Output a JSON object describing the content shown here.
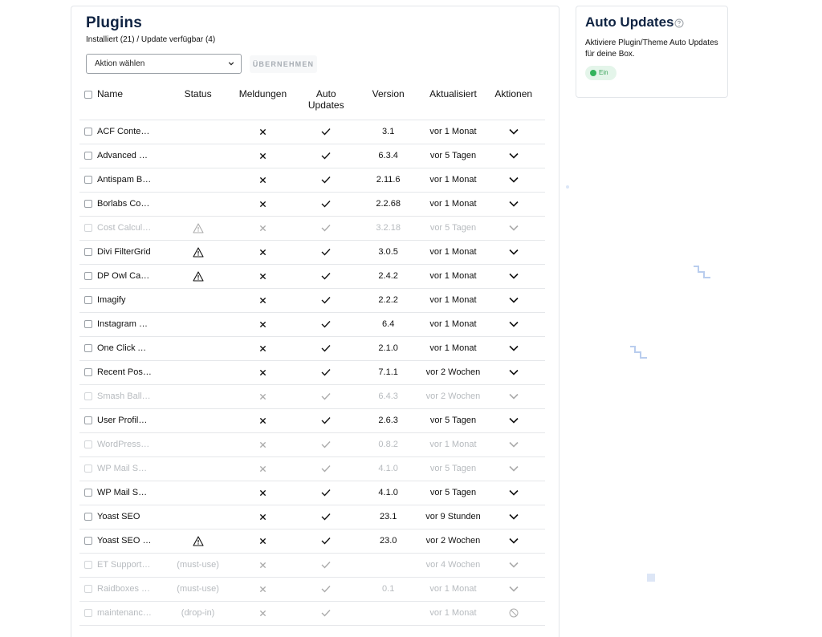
{
  "plugins_card": {
    "title": "Plugins",
    "subtitle": "Installiert (21) / Update verfügbar (4)",
    "bulk_action": {
      "value": "Aktion wählen"
    },
    "apply_label": "ÜBERNEHMEN",
    "columns": {
      "name": "Name",
      "status": "Status",
      "notifications": "Meldungen",
      "auto_updates_line1": "Auto",
      "auto_updates_line2": "Updates",
      "version": "Version",
      "updated": "Aktualisiert",
      "actions": "Aktionen"
    },
    "rows": [
      {
        "name": "ACF Content…",
        "status": "",
        "version": "3.1",
        "updated": "vor 1 Monat",
        "active": true,
        "warning": false,
        "action": "chevron"
      },
      {
        "name": "Advanced C…",
        "status": "",
        "version": "6.3.4",
        "updated": "vor 5 Tagen",
        "active": true,
        "warning": false,
        "action": "chevron"
      },
      {
        "name": "Antispam Bee",
        "status": "",
        "version": "2.11.6",
        "updated": "vor 1 Monat",
        "active": true,
        "warning": false,
        "action": "chevron"
      },
      {
        "name": "Borlabs Coo…",
        "status": "",
        "version": "2.2.68",
        "updated": "vor 1 Monat",
        "active": true,
        "warning": false,
        "action": "chevron"
      },
      {
        "name": "Cost Calcula…",
        "status": "",
        "version": "3.2.18",
        "updated": "vor 5 Tagen",
        "active": false,
        "warning": true,
        "action": "chevron"
      },
      {
        "name": "Divi FilterGrid",
        "status": "",
        "version": "3.0.5",
        "updated": "vor 1 Monat",
        "active": true,
        "warning": true,
        "action": "chevron"
      },
      {
        "name": "DP Owl Caro…",
        "status": "",
        "version": "2.4.2",
        "updated": "vor 1 Monat",
        "active": true,
        "warning": true,
        "action": "chevron"
      },
      {
        "name": "Imagify",
        "status": "",
        "version": "2.2.2",
        "updated": "vor 1 Monat",
        "active": true,
        "warning": false,
        "action": "chevron"
      },
      {
        "name": "Instagram F…",
        "status": "",
        "version": "6.4",
        "updated": "vor 1 Monat",
        "active": true,
        "warning": false,
        "action": "chevron"
      },
      {
        "name": "One Click Ac…",
        "status": "",
        "version": "2.1.0",
        "updated": "vor 1 Monat",
        "active": true,
        "warning": false,
        "action": "chevron"
      },
      {
        "name": "Recent Post…",
        "status": "",
        "version": "7.1.1",
        "updated": "vor 2 Wochen",
        "active": true,
        "warning": false,
        "action": "chevron"
      },
      {
        "name": "Smash Ballo…",
        "status": "",
        "version": "6.4.3",
        "updated": "vor 2 Wochen",
        "active": false,
        "warning": false,
        "action": "chevron"
      },
      {
        "name": "User Profile …",
        "status": "",
        "version": "2.6.3",
        "updated": "vor 5 Tagen",
        "active": true,
        "warning": false,
        "action": "chevron"
      },
      {
        "name": "WordPress I…",
        "status": "",
        "version": "0.8.2",
        "updated": "vor 1 Monat",
        "active": false,
        "warning": false,
        "action": "chevron"
      },
      {
        "name": "WP Mail SM…",
        "status": "",
        "version": "4.1.0",
        "updated": "vor 5 Tagen",
        "active": false,
        "warning": false,
        "action": "chevron"
      },
      {
        "name": "WP Mail SM…",
        "status": "",
        "version": "4.1.0",
        "updated": "vor 5 Tagen",
        "active": true,
        "warning": false,
        "action": "chevron"
      },
      {
        "name": "Yoast SEO",
        "status": "",
        "version": "23.1",
        "updated": "vor 9 Stunden",
        "active": true,
        "warning": false,
        "action": "chevron"
      },
      {
        "name": "Yoast SEO P…",
        "status": "",
        "version": "23.0",
        "updated": "vor 2 Wochen",
        "active": true,
        "warning": true,
        "action": "chevron"
      },
      {
        "name": "ET Support …",
        "status": "(must-use)",
        "version": "",
        "updated": "vor 4 Wochen",
        "active": false,
        "warning": false,
        "action": "chevron"
      },
      {
        "name": "Raidboxes …",
        "status": "(must-use)",
        "version": "0.1",
        "updated": "vor 1 Monat",
        "active": false,
        "warning": false,
        "action": "chevron"
      },
      {
        "name": "maintenanc…",
        "status": "(drop-in)",
        "version": "",
        "updated": "vor 1 Monat",
        "active": false,
        "warning": false,
        "action": "blocked"
      }
    ]
  },
  "auto_updates_card": {
    "title": "Auto Updates",
    "description": "Aktiviere Plugin/Theme Auto Updates für deine Box.",
    "toggle_label": "Ein"
  },
  "icons": {
    "notification": "close-icon",
    "auto_update": "checkmark-icon",
    "warning": "warning-triangle-icon",
    "actions": "chevron-down-icon",
    "blocked": "prohibited-icon",
    "help": "help-circle-icon"
  },
  "colors": {
    "title": "#0f2342",
    "toggle_on": "#33b35c",
    "toggle_bg": "#e4f5ea",
    "muted": "#b7bbbf"
  }
}
